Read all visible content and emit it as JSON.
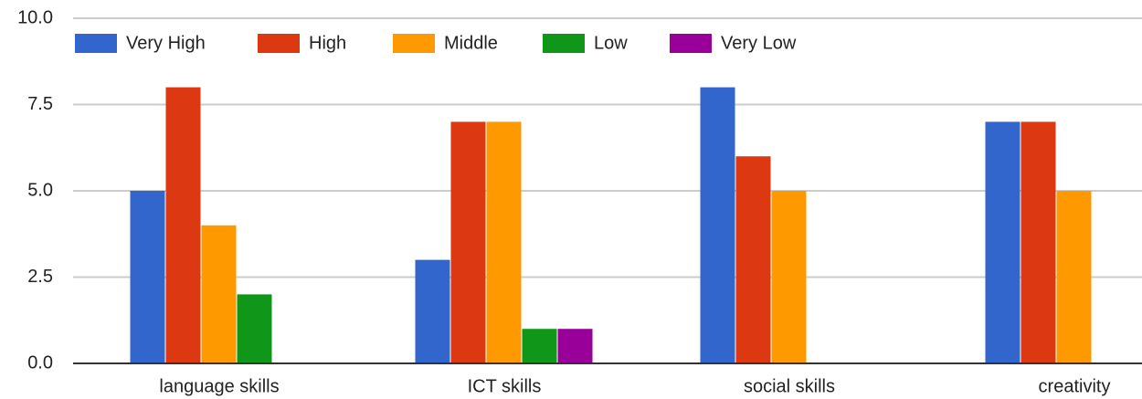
{
  "chart_data": {
    "type": "bar",
    "categories": [
      "language skills",
      "ICT skills",
      "social skills",
      "creativity"
    ],
    "series": [
      {
        "name": "Very High",
        "color": "#3366cc",
        "values": [
          5,
          3,
          8,
          7
        ]
      },
      {
        "name": "High",
        "color": "#dc3912",
        "values": [
          8,
          7,
          6,
          7
        ]
      },
      {
        "name": "Middle",
        "color": "#ff9900",
        "values": [
          4,
          7,
          5,
          5
        ]
      },
      {
        "name": "Low",
        "color": "#109618",
        "values": [
          2,
          1,
          0,
          0
        ]
      },
      {
        "name": "Very Low",
        "color": "#990099",
        "values": [
          0,
          1,
          0,
          0
        ]
      }
    ],
    "ylim": [
      0,
      10
    ],
    "yticks": [
      {
        "value": 0,
        "label": "0.0"
      },
      2.5,
      {
        "value": 5,
        "label": "5.0"
      },
      7.5,
      {
        "value": 10,
        "label": "10.0"
      }
    ],
    "grid": true,
    "legend": "top"
  }
}
